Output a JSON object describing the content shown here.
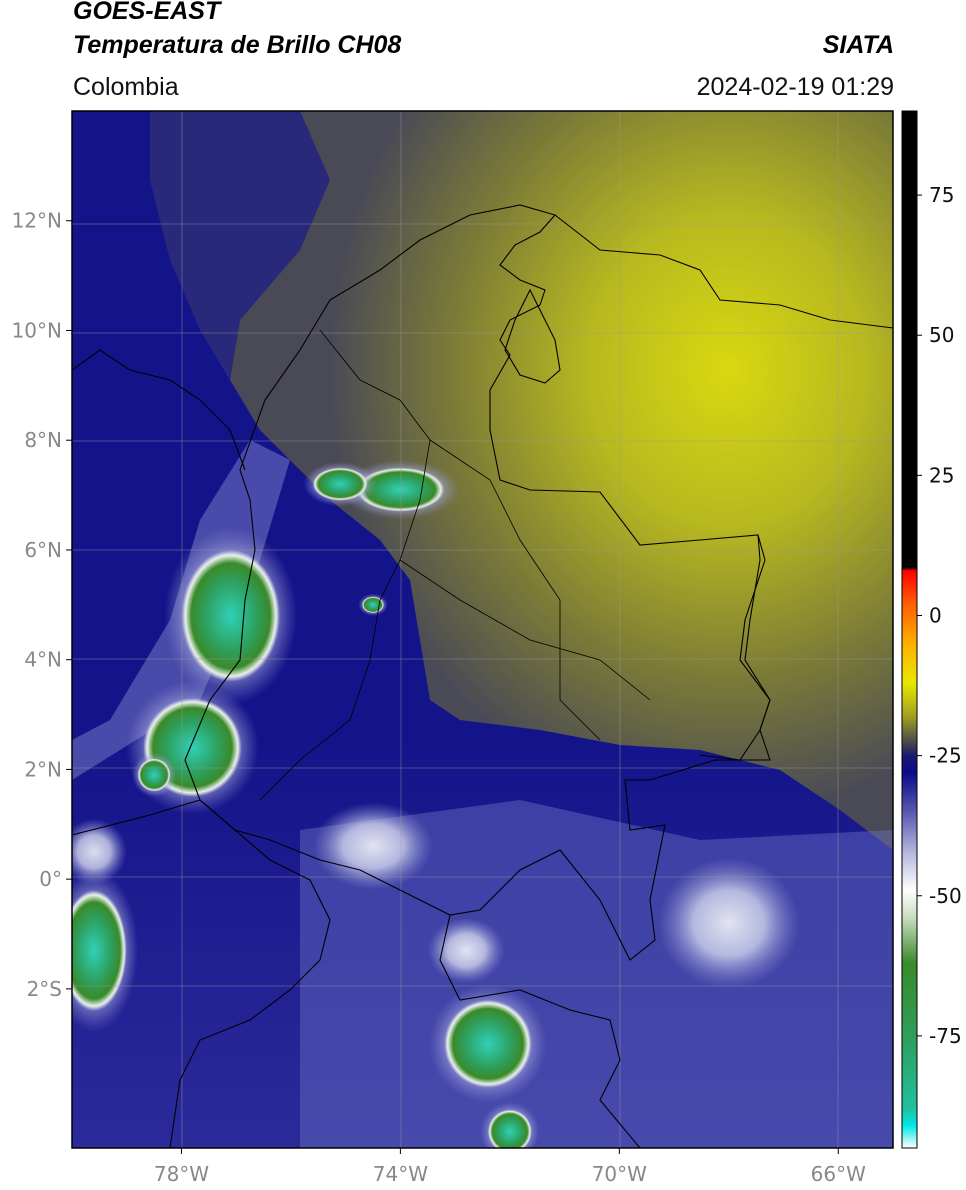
{
  "header": {
    "satellite": "GOES-EAST",
    "product": "Temperatura de Brillo CH08",
    "organization": "SIATA",
    "region": "Colombia",
    "timestamp": "2024-02-19 01:29"
  },
  "map": {
    "lon_range": [
      -80,
      -65
    ],
    "lat_range": [
      -4.9,
      14
    ],
    "lon_ticks": [
      {
        "value": -78,
        "label": "78°W"
      },
      {
        "value": -74,
        "label": "74°W"
      },
      {
        "value": -70,
        "label": "70°W"
      },
      {
        "value": -66,
        "label": "66°W"
      }
    ],
    "lat_ticks": [
      {
        "value": 12,
        "label": "12°N"
      },
      {
        "value": 10,
        "label": "10°N"
      },
      {
        "value": 8,
        "label": "8°N"
      },
      {
        "value": 6,
        "label": "6°N"
      },
      {
        "value": 4,
        "label": "4°N"
      },
      {
        "value": 2,
        "label": "2°N"
      },
      {
        "value": 0,
        "label": "0°"
      },
      {
        "value": -2,
        "label": "2°S"
      }
    ],
    "grid": true
  },
  "colorbar": {
    "range": [
      -95,
      90
    ],
    "ticks": [
      {
        "value": 75,
        "label": "75"
      },
      {
        "value": 50,
        "label": "50"
      },
      {
        "value": 25,
        "label": "25"
      },
      {
        "value": 0,
        "label": "0"
      },
      {
        "value": -25,
        "label": "-25"
      },
      {
        "value": -50,
        "label": "-50"
      },
      {
        "value": -75,
        "label": "-75"
      }
    ],
    "stops": [
      {
        "value": -95,
        "color": "#ffffff"
      },
      {
        "value": -91,
        "color": "#00e8e8"
      },
      {
        "value": -88,
        "color": "#20c0a0"
      },
      {
        "value": -75,
        "color": "#2e9e5a"
      },
      {
        "value": -62,
        "color": "#3a8a2a"
      },
      {
        "value": -54,
        "color": "#c8dcc0"
      },
      {
        "value": -49,
        "color": "#ffffff"
      },
      {
        "value": -42,
        "color": "#b0b4dc"
      },
      {
        "value": -35,
        "color": "#5858b0"
      },
      {
        "value": -28,
        "color": "#0a0a88"
      },
      {
        "value": -25,
        "color": "#1a1a70"
      },
      {
        "value": -23,
        "color": "#404050"
      },
      {
        "value": -18,
        "color": "#a0a020"
      },
      {
        "value": -12,
        "color": "#e8e800"
      },
      {
        "value": -5,
        "color": "#ffb000"
      },
      {
        "value": 2,
        "color": "#ff6000"
      },
      {
        "value": 8,
        "color": "#ff0000"
      },
      {
        "value": 8.5,
        "color": "#000000"
      },
      {
        "value": 90,
        "color": "#000000"
      }
    ]
  },
  "clouds": [
    {
      "lon": -77.1,
      "lat": 4.8,
      "rx": 0.9,
      "ry": 1.2,
      "kind": "deep"
    },
    {
      "lon": -77.8,
      "lat": 2.4,
      "rx": 0.9,
      "ry": 0.9,
      "kind": "deep"
    },
    {
      "lon": -78.5,
      "lat": 1.9,
      "rx": 0.3,
      "ry": 0.3,
      "kind": "deep"
    },
    {
      "lon": -74.0,
      "lat": 7.1,
      "rx": 0.8,
      "ry": 0.4,
      "kind": "deep"
    },
    {
      "lon": -75.1,
      "lat": 7.2,
      "rx": 0.5,
      "ry": 0.3,
      "kind": "deep"
    },
    {
      "lon": -72.4,
      "lat": -3.0,
      "rx": 0.8,
      "ry": 0.8,
      "kind": "deep"
    },
    {
      "lon": -72.0,
      "lat": -4.6,
      "rx": 0.4,
      "ry": 0.4,
      "kind": "deep"
    },
    {
      "lon": -79.6,
      "lat": -1.3,
      "rx": 0.6,
      "ry": 1.1,
      "kind": "deep"
    },
    {
      "lon": -79.6,
      "lat": 0.5,
      "rx": 0.6,
      "ry": 0.6,
      "kind": "cold"
    },
    {
      "lon": -72.8,
      "lat": -1.3,
      "rx": 0.7,
      "ry": 0.6,
      "kind": "cold"
    },
    {
      "lon": -74.5,
      "lat": 0.6,
      "rx": 1.1,
      "ry": 0.8,
      "kind": "cold"
    },
    {
      "lon": -68.0,
      "lat": -0.8,
      "rx": 1.3,
      "ry": 1.2,
      "kind": "cold"
    },
    {
      "lon": -74.5,
      "lat": 5.0,
      "rx": 0.2,
      "ry": 0.15,
      "kind": "deep"
    }
  ]
}
